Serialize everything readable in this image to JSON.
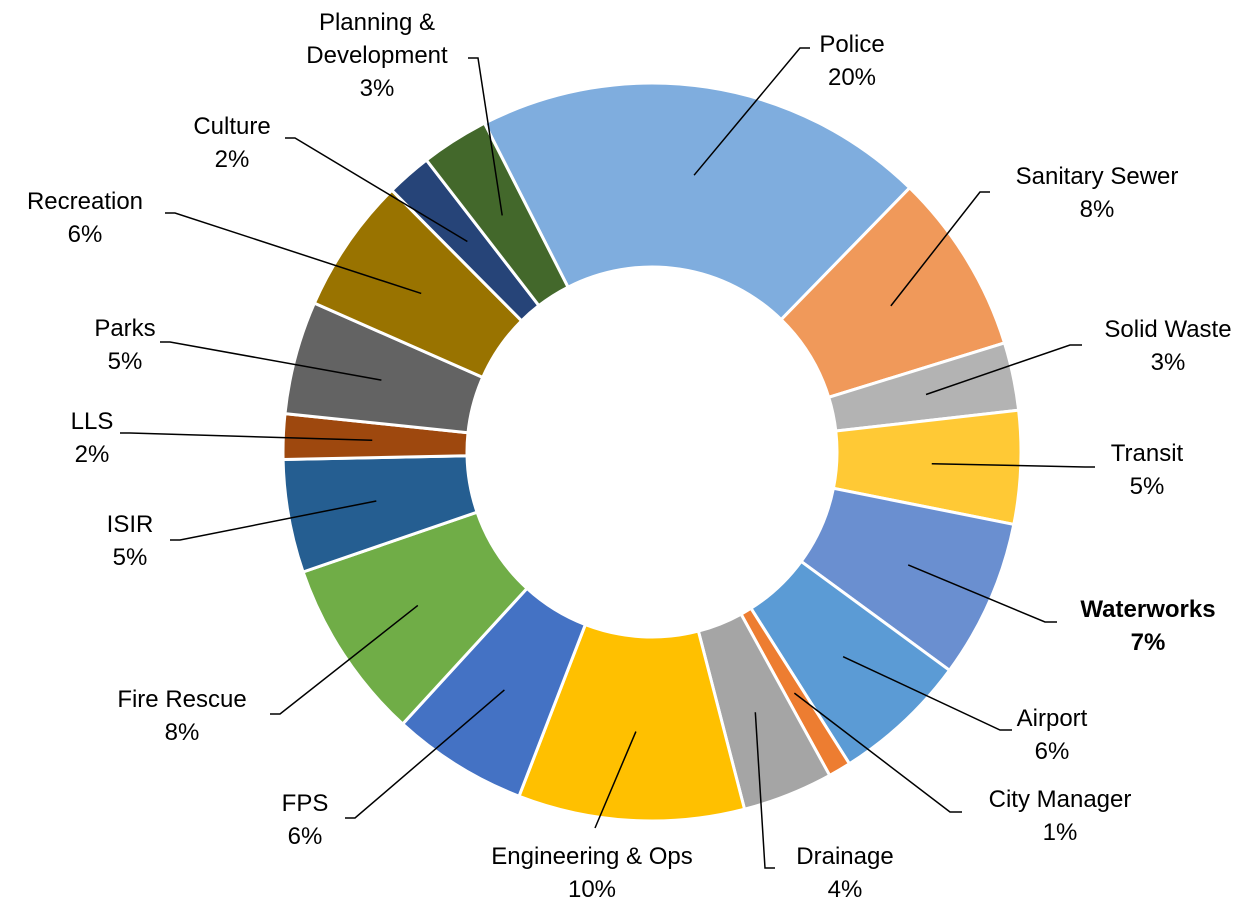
{
  "chart_data": {
    "type": "donut",
    "categories": [
      "Police",
      "Sanitary Sewer",
      "Solid Waste",
      "Transit",
      "Waterworks",
      "Airport",
      "City Manager",
      "Drainage",
      "Engineering & Ops",
      "FPS",
      "Fire Rescue",
      "ISIR",
      "LLS",
      "Parks",
      "Recreation",
      "Culture",
      "Planning & Development"
    ],
    "values": [
      20,
      8,
      3,
      5,
      7,
      6,
      1,
      4,
      10,
      6,
      8,
      5,
      2,
      5,
      6,
      2,
      3
    ],
    "value_labels": [
      "20%",
      "8%",
      "3%",
      "5%",
      "7%",
      "6%",
      "1%",
      "4%",
      "10%",
      "6%",
      "8%",
      "5%",
      "2%",
      "5%",
      "6%",
      "2%",
      "3%"
    ],
    "colors": [
      "#7fadde",
      "#f0995a",
      "#b3b3b3",
      "#ffc935",
      "#6a8fd0",
      "#5b9bd5",
      "#ed7d31",
      "#a5a5a5",
      "#ffc000",
      "#4472c4",
      "#70ad47",
      "#255e91",
      "#9e480e",
      "#636363",
      "#997300",
      "#264478",
      "#43682b"
    ],
    "bold_categories": [
      "Waterworks"
    ]
  }
}
